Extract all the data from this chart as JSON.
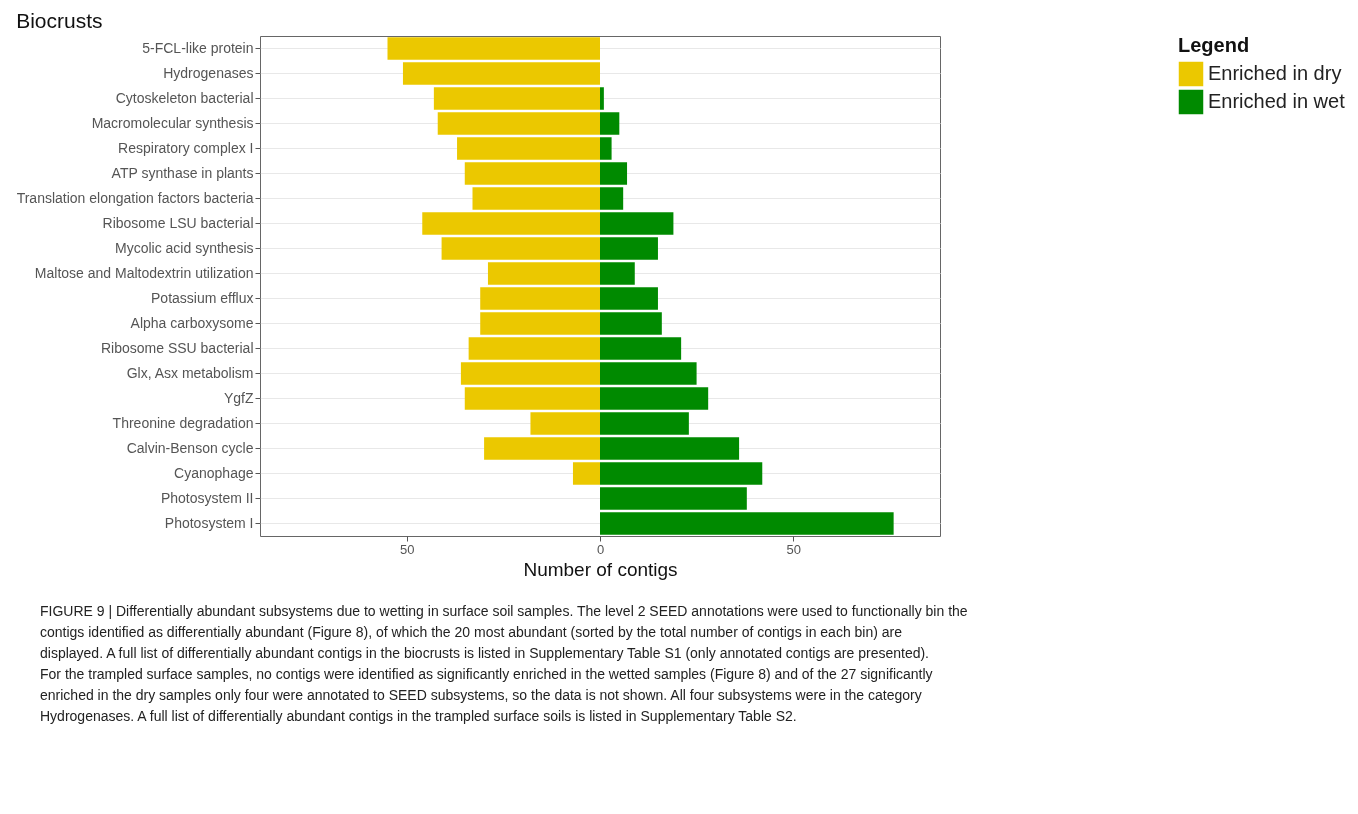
{
  "chart_data": {
    "type": "bar",
    "orientation": "horizontal",
    "stacked": true,
    "title": "Biocrusts",
    "xlabel": "Number of contigs",
    "legend_title": "Legend",
    "legend": "right",
    "grid": "y",
    "categories": [
      "5-FCL-like protein",
      "Hydrogenases",
      "Cytoskeleton bacterial",
      "Macromolecular synthesis",
      "Respiratory complex I",
      "ATP synthase in plants",
      "Translation elongation factors bacteria",
      "Ribosome LSU bacterial",
      "Mycolic acid synthesis",
      "Maltose and Maltodextrin utilization",
      "Potassium efflux",
      "Alpha carboxysome",
      "Ribosome SSU bacterial",
      "Glx, Asx metabolism",
      "YgfZ",
      "Threonine degradation",
      "Calvin-Benson cycle",
      "Cyanophage",
      "Photosystem II",
      "Photosystem I"
    ],
    "series": [
      {
        "name": "Enriched in dry",
        "color": "#ebc800",
        "values": [
          -55,
          -51,
          -43,
          -42,
          -37,
          -35,
          -33,
          -46,
          -41,
          -29,
          -31,
          -31,
          -34,
          -36,
          -35,
          -18,
          -30,
          -7,
          null,
          null
        ]
      },
      {
        "name": "Enriched in wet",
        "color": "#008a00",
        "values": [
          null,
          null,
          1,
          5,
          3,
          7,
          6,
          19,
          15,
          9,
          15,
          16,
          21,
          25,
          28,
          23,
          36,
          42,
          38,
          76
        ]
      }
    ],
    "xlim": [
      -88,
      88
    ],
    "xticks": [
      {
        "value": -50,
        "label": "50"
      },
      0,
      50
    ],
    "annotations": [
      "FIGURE 9 | Differentially abundant subsystems due to wetting in surface soil samples. The level 2 SEED annotations were used to functionally bin the contigs identified as differentially abundant (Figure 8), of which the 20 most abundant (sorted by the total number of contigs in each bin) are displayed. A full list of differentially abundant contigs in the biocrusts is listed in Supplementary Table S1 (only annotated contigs are presented). For the trampled surface samples, no contigs were identified as significantly enriched in the wetted samples (Figure 8) and of the 27 significantly enriched in the dry samples only four were annotated to SEED subsystems, so the data is not shown. All four subsystems were in the category Hydrogenases. A full list of differentially abundant contigs in the trampled surface soils is listed in Supplementary Table S2."
    ]
  }
}
